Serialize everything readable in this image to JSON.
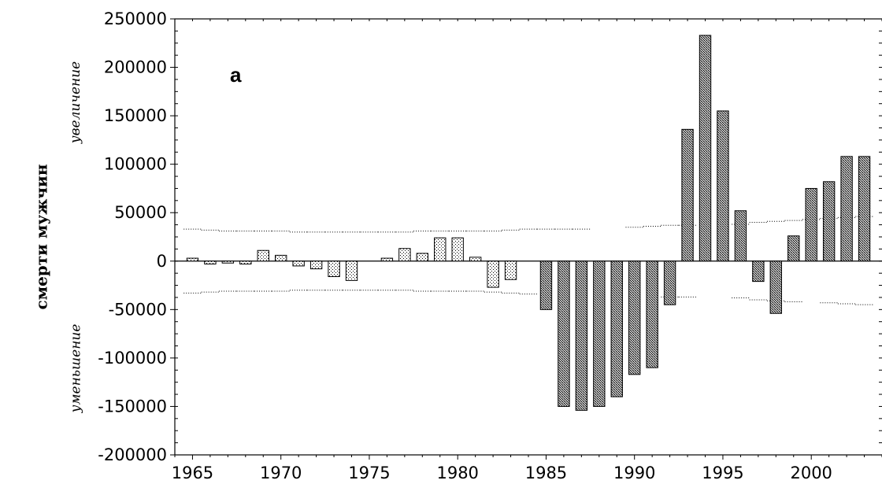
{
  "chart_data": {
    "type": "bar",
    "panel_label": "a",
    "ylabel_main": "смерти   мужчин",
    "ylabel_upper": "увеличение",
    "ylabel_lower": "уменьшение",
    "xlim": [
      1964,
      2004
    ],
    "ylim": [
      -200000,
      250000
    ],
    "x_ticks": [
      1965,
      1970,
      1975,
      1980,
      1985,
      1990,
      1995,
      2000
    ],
    "y_ticks": [
      250000,
      200000,
      150000,
      100000,
      50000,
      0,
      -50000,
      -100000,
      -150000,
      -200000
    ],
    "y_tick_labels": [
      "250000",
      "200000",
      "150000",
      "100000",
      "50000",
      "0",
      "-50000",
      "-100000",
      "-150000",
      "-200000"
    ],
    "grid": false,
    "series": [
      {
        "pattern": "light-dotted",
        "x": [
          1965,
          1966,
          1967,
          1968,
          1969,
          1970,
          1971,
          1972,
          1973,
          1974,
          1976,
          1977,
          1978,
          1979,
          1980,
          1981,
          1982,
          1983
        ],
        "values": [
          3000,
          -3000,
          -2000,
          -3000,
          11000,
          6000,
          -5000,
          -8000,
          -16000,
          -20000,
          3000,
          13000,
          8000,
          24000,
          24000,
          4000,
          -27000,
          -19000
        ]
      },
      {
        "pattern": "dark-crosshatch",
        "x": [
          1985,
          1986,
          1987,
          1988,
          1989,
          1990,
          1991,
          1992,
          1993,
          1994,
          1995,
          1996,
          1997,
          1998,
          1999,
          2000,
          2001,
          2002,
          2003
        ],
        "values": [
          -50000,
          -150000,
          -154000,
          -150000,
          -140000,
          -117000,
          -110000,
          -45000,
          136000,
          233000,
          155000,
          52000,
          -21000,
          -54000,
          26000,
          75000,
          82000,
          108000,
          108000
        ]
      }
    ],
    "thresholds": [
      {
        "x": [
          1965,
          1966,
          1967,
          1968,
          1969,
          1970,
          1971,
          1972,
          1973,
          1974,
          1975,
          1976,
          1977,
          1978,
          1979,
          1980,
          1981,
          1982,
          1983,
          1984,
          1985,
          1986,
          1987,
          1988,
          1989,
          1990,
          1991,
          1992,
          1993,
          1994,
          1995,
          1996,
          1997,
          1998,
          1999,
          2000,
          2001,
          2002,
          2003
        ],
        "values": [
          33000,
          32000,
          31000,
          31000,
          31000,
          31000,
          30000,
          30000,
          30000,
          30000,
          30000,
          30000,
          30000,
          31000,
          31000,
          31000,
          31000,
          31000,
          32000,
          33000,
          33000,
          33000,
          33000,
          null,
          null,
          35000,
          36000,
          37000,
          37000,
          null,
          null,
          38000,
          40000,
          41000,
          42000,
          43000,
          44000,
          45000,
          46000
        ]
      },
      {
        "x": [
          1965,
          1966,
          1967,
          1968,
          1969,
          1970,
          1971,
          1972,
          1973,
          1974,
          1975,
          1976,
          1977,
          1978,
          1979,
          1980,
          1981,
          1982,
          1983,
          1984,
          1985,
          1986,
          1987,
          1988,
          1989,
          1990,
          1991,
          1992,
          1993,
          1994,
          1995,
          1996,
          1997,
          1998,
          1999,
          2000,
          2001,
          2002,
          2003
        ],
        "values": [
          -33000,
          -32000,
          -31000,
          -31000,
          -31000,
          -31000,
          -30000,
          -30000,
          -30000,
          -30000,
          -30000,
          -30000,
          -30000,
          -31000,
          -31000,
          -31000,
          -31000,
          -32000,
          -33000,
          -34000,
          null,
          null,
          null,
          null,
          null,
          null,
          null,
          -37000,
          -37000,
          null,
          null,
          -38000,
          -40000,
          -41000,
          -42000,
          null,
          -43000,
          -44000,
          -45000
        ]
      }
    ]
  }
}
